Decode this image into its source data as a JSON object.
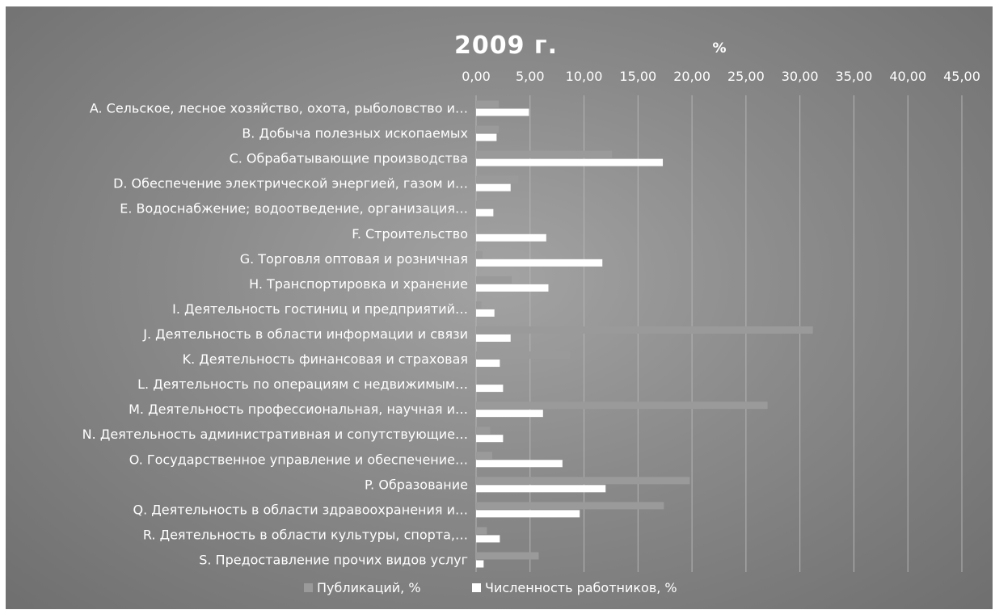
{
  "chart_data": {
    "type": "bar",
    "orientation": "horizontal",
    "title": "2009 г.",
    "unit_label": "%",
    "xlim": [
      0,
      45
    ],
    "x_ticks": [
      "0,00",
      "5,00",
      "10,00",
      "15,00",
      "20,00",
      "25,00",
      "30,00",
      "35,00",
      "40,00",
      "45,00"
    ],
    "x_axis_position": "top",
    "grid": true,
    "legend_position": "bottom",
    "categories": [
      "A. Сельское, лесное хозяйство, охота, рыболовство и…",
      "B. Добыча полезных ископаемых",
      "C. Обрабатывающие производства",
      "D. Обеспечение электрической энергией, газом и…",
      "E. Водоснабжение; водоотведение, организация…",
      "F. Строительство",
      "G. Торговля оптовая и розничная",
      "H. Транспортировка и хранение",
      "I. Деятельность гостиниц и предприятий…",
      "J. Деятельность в области информации и связи",
      "K. Деятельность финансовая и страховая",
      "L. Деятельность по операциям с недвижимым…",
      "M. Деятельность профессиональная, научная и…",
      "N. Деятельность административная и сопутствующие…",
      "O. Государственное управление и обеспечение…",
      "P. Образование",
      "Q. Деятельность в области здравоохранения и…",
      "R. Деятельность в области культуры, спорта,…",
      "S. Предоставление прочих видов услуг"
    ],
    "series": [
      {
        "name": "Публикаций, %",
        "color": "#9a9a9a",
        "values": [
          2.1,
          2.1,
          12.6,
          3.9,
          1.9,
          0.0,
          0.6,
          3.3,
          0.5,
          31.2,
          8.7,
          0.0,
          27.0,
          1.3,
          1.5,
          19.8,
          17.4,
          1.0,
          5.8
        ]
      },
      {
        "name": "Численность работников, %",
        "color": "#ffffff",
        "values": [
          4.9,
          1.9,
          17.3,
          3.2,
          1.6,
          6.5,
          11.7,
          6.7,
          1.7,
          3.2,
          2.2,
          2.5,
          6.2,
          2.5,
          8.0,
          12.0,
          9.6,
          2.2,
          0.7
        ]
      }
    ]
  }
}
